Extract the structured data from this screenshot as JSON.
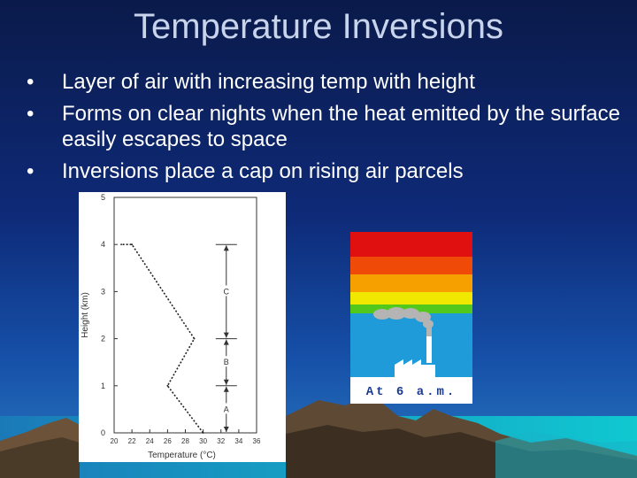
{
  "slide": {
    "title": "Temperature Inversions",
    "bullets": [
      "Layer of air with increasing temp with height",
      "Forms on clear nights when the heat emitted by the surface easily escapes to space",
      "Inversions place a cap on rising air parcels"
    ],
    "bullet_glyph": "•"
  },
  "chart_data": {
    "type": "line",
    "xlabel": "Temperature (°C)",
    "ylabel": "Height (km)",
    "xlim": [
      20,
      36
    ],
    "ylim": [
      0,
      5
    ],
    "xticks": [
      "20",
      "22",
      "24",
      "26",
      "28",
      "30",
      "32",
      "34",
      "36"
    ],
    "yticks": [
      "0",
      "1",
      "2",
      "3",
      "4",
      "5"
    ],
    "series": [
      {
        "values": [
          {
            "x": 30,
            "y": 0
          },
          {
            "x": 26,
            "y": 1
          },
          {
            "x": 29,
            "y": 2
          },
          {
            "x": 22,
            "y": 4
          },
          {
            "x": 20.8,
            "y": 4
          }
        ]
      }
    ],
    "layers": [
      {
        "label": "A",
        "from": 0,
        "to": 1
      },
      {
        "label": "B",
        "from": 1,
        "to": 2
      },
      {
        "label": "C",
        "from": 2,
        "to": 4
      }
    ]
  },
  "inversion_panel": {
    "caption": "At 6 a.m.",
    "colors": [
      "#e01010",
      "#ef4a08",
      "#f6a000",
      "#f0e800",
      "#52c81c",
      "#1e9bd8"
    ]
  }
}
